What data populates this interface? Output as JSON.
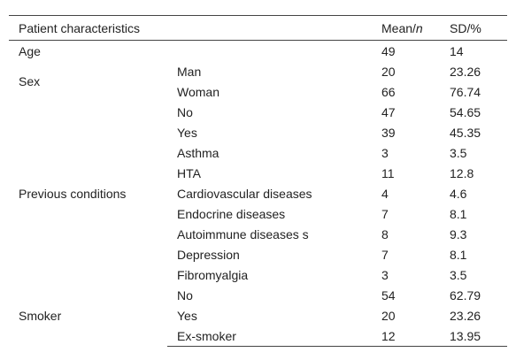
{
  "table": {
    "header": {
      "characteristic": "Patient characteristics",
      "mean": [
        "Mean/",
        "n"
      ],
      "sd": "SD/%"
    },
    "groups": [
      {
        "label": "Age",
        "rows": [
          {
            "mean": 49,
            "sd": 14
          }
        ]
      },
      {
        "label": "Sex",
        "rows": [
          {
            "item": "Man",
            "mean": 20,
            "sd": 23.26
          },
          {
            "item": "Woman",
            "mean": 66,
            "sd": 76.74
          }
        ]
      },
      {
        "label": "Previous conditions",
        "rows": [
          {
            "item": "No",
            "mean": 47,
            "sd": 54.65
          },
          {
            "item": "Yes",
            "mean": 39,
            "sd": 45.35
          },
          {
            "item": "Asthma",
            "mean": 3,
            "sd": 3.5
          },
          {
            "item": "HTA",
            "mean": 11,
            "sd": 12.8
          },
          {
            "item": "Cardiovascular diseases",
            "mean": 4,
            "sd": 4.6
          },
          {
            "item": "Endocrine diseases",
            "mean": 7,
            "sd": 8.1
          },
          {
            "item": "Autoimmune diseases s",
            "mean": 8,
            "sd": 9.3
          },
          {
            "item": "Depression",
            "mean": 7,
            "sd": 8.1
          },
          {
            "item": "Fibromyalgia",
            "mean": 3,
            "sd": 3.5
          }
        ]
      },
      {
        "label": "Smoker",
        "rows": [
          {
            "item": "No",
            "mean": 54,
            "sd": 62.79
          },
          {
            "item": "Yes",
            "mean": 20,
            "sd": 23.26
          },
          {
            "item": "Ex-smoker",
            "mean": 12,
            "sd": 13.95
          }
        ]
      }
    ]
  }
}
